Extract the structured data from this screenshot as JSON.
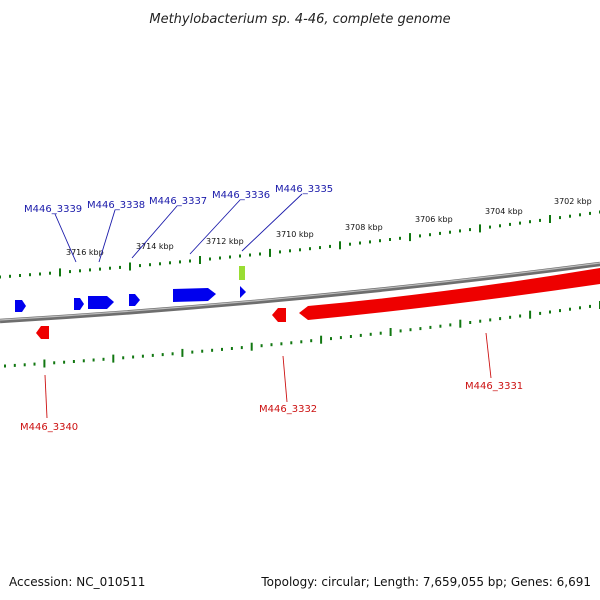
{
  "title": "Methylobacterium sp. 4-46, complete genome",
  "footer": {
    "accession": "Accession: NC_010511",
    "summary": "Topology: circular; Length: 7,659,055 bp; Genes: 6,691"
  },
  "colors": {
    "forward_gene": "#0000ee",
    "reverse_gene": "#ee0000",
    "forward_label": "#1a1aaa",
    "reverse_label": "#cc1111",
    "tick": "#117711",
    "backbone": "#777777",
    "highlight": "#99dd33"
  },
  "scale_labels": [
    "3716 kbp",
    "3714 kbp",
    "3712 kbp",
    "3710 kbp",
    "3708 kbp",
    "3706 kbp",
    "3704 kbp",
    "3702 kbp"
  ],
  "genes_forward": [
    "M446_3339",
    "M446_3338",
    "M446_3337",
    "M446_3336",
    "M446_3335"
  ],
  "genes_reverse": [
    "M446_3340",
    "M446_3332",
    "M446_3331"
  ]
}
